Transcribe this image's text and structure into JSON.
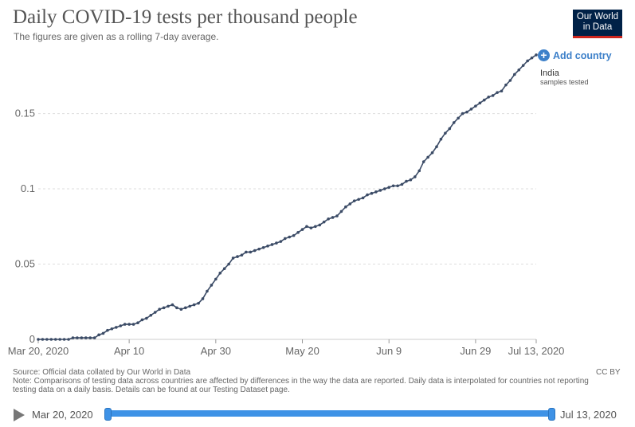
{
  "header": {
    "title": "Daily COVID-19 tests per thousand people",
    "subtitle": "The figures are given as a rolling 7-day average."
  },
  "logo": {
    "line1": "Our World",
    "line2": "in Data"
  },
  "controls": {
    "add_country_label": "Add country"
  },
  "series_label": {
    "name": "India",
    "sub": "samples tested"
  },
  "chart_data": {
    "type": "line",
    "title": "Daily COVID-19 tests per thousand people",
    "xlabel": "",
    "ylabel": "",
    "ylim": [
      0,
      0.19
    ],
    "xlim_days": [
      0,
      115
    ],
    "y_ticks": [
      0,
      0.05,
      0.1,
      0.15
    ],
    "y_tick_labels": [
      "0",
      "0.05",
      "0.1",
      "0.15"
    ],
    "x_ticks": [
      {
        "day": 0,
        "label": "Mar 20, 2020"
      },
      {
        "day": 21,
        "label": "Apr 10"
      },
      {
        "day": 41,
        "label": "Apr 30"
      },
      {
        "day": 61,
        "label": "May 20"
      },
      {
        "day": 81,
        "label": "Jun 9"
      },
      {
        "day": 101,
        "label": "Jun 29"
      },
      {
        "day": 115,
        "label": "Jul 13, 2020"
      }
    ],
    "grid": true,
    "series": [
      {
        "name": "India",
        "unit": "samples tested",
        "color": "#3b4b66",
        "x_days": [
          0,
          1,
          2,
          3,
          4,
          5,
          6,
          7,
          8,
          9,
          10,
          11,
          12,
          13,
          14,
          15,
          16,
          17,
          18,
          19,
          20,
          21,
          22,
          23,
          24,
          25,
          26,
          27,
          28,
          29,
          30,
          31,
          32,
          33,
          34,
          35,
          36,
          37,
          38,
          39,
          40,
          41,
          42,
          43,
          44,
          45,
          46,
          47,
          48,
          49,
          50,
          51,
          52,
          53,
          54,
          55,
          56,
          57,
          58,
          59,
          60,
          61,
          62,
          63,
          64,
          65,
          66,
          67,
          68,
          69,
          70,
          71,
          72,
          73,
          74,
          75,
          76,
          77,
          78,
          79,
          80,
          81,
          82,
          83,
          84,
          85,
          86,
          87,
          88,
          89,
          90,
          91,
          92,
          93,
          94,
          95,
          96,
          97,
          98,
          99,
          100,
          101,
          102,
          103,
          104,
          105,
          106,
          107,
          108,
          109,
          110,
          111,
          112,
          113,
          114,
          115
        ],
        "values": [
          0,
          0,
          0,
          0,
          0,
          0,
          0,
          0,
          0.001,
          0.001,
          0.001,
          0.001,
          0.001,
          0.001,
          0.003,
          0.004,
          0.006,
          0.007,
          0.008,
          0.009,
          0.01,
          0.01,
          0.01,
          0.011,
          0.013,
          0.014,
          0.016,
          0.018,
          0.02,
          0.021,
          0.022,
          0.023,
          0.021,
          0.02,
          0.021,
          0.022,
          0.023,
          0.024,
          0.027,
          0.032,
          0.036,
          0.04,
          0.044,
          0.047,
          0.05,
          0.054,
          0.055,
          0.056,
          0.058,
          0.058,
          0.059,
          0.06,
          0.061,
          0.062,
          0.063,
          0.064,
          0.065,
          0.067,
          0.068,
          0.069,
          0.071,
          0.073,
          0.075,
          0.074,
          0.075,
          0.076,
          0.078,
          0.08,
          0.081,
          0.082,
          0.085,
          0.088,
          0.09,
          0.092,
          0.093,
          0.094,
          0.096,
          0.097,
          0.098,
          0.099,
          0.1,
          0.101,
          0.102,
          0.102,
          0.103,
          0.105,
          0.106,
          0.108,
          0.112,
          0.118,
          0.121,
          0.124,
          0.128,
          0.133,
          0.137,
          0.14,
          0.144,
          0.147,
          0.15,
          0.151,
          0.153,
          0.155,
          0.157,
          0.159,
          0.161,
          0.162,
          0.164,
          0.165,
          0.169,
          0.172,
          0.176,
          0.179,
          0.182,
          0.185,
          0.187,
          0.189
        ]
      }
    ]
  },
  "footer": {
    "source": "Source: Official data collated by Our World in Data",
    "note": "Note: Comparisons of testing data across countries are affected by differences in the way the data are reported. Daily data is interpolated for countries not reporting testing data on a daily basis. Details can be found at our Testing Dataset page.",
    "license": "CC BY"
  },
  "timeline": {
    "start_label": "Mar 20, 2020",
    "end_label": "Jul 13, 2020"
  }
}
